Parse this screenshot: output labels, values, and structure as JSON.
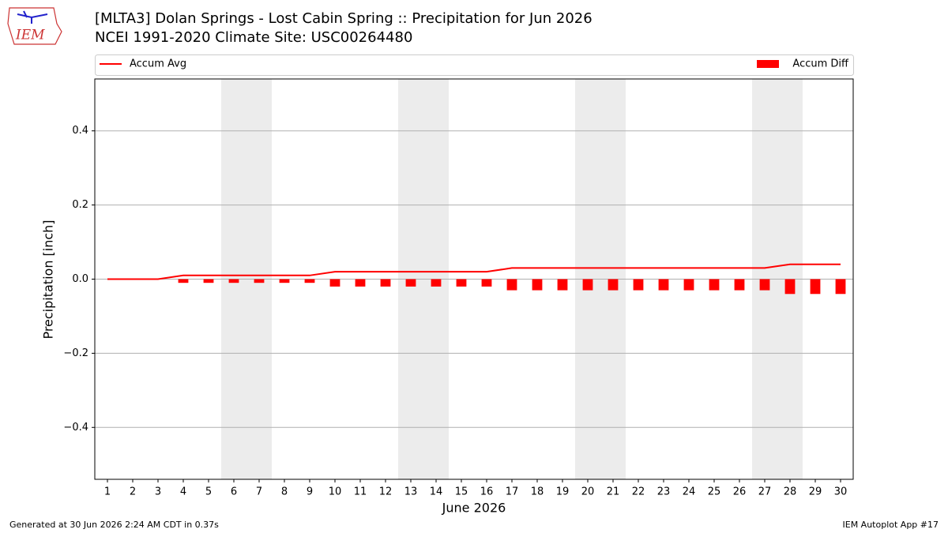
{
  "logo_text": "IEM",
  "footer": {
    "left": "Generated at 30 Jun 2026 2:24 AM CDT in 0.37s",
    "right": "IEM Autoplot App #17"
  },
  "chart_data": {
    "type": "bar-line",
    "title": "[MLTA3] Dolan Springs - Lost Cabin Spring :: Precipitation for Jun 2026",
    "subtitle": "NCEI 1991-2020 Climate Site: USC00264480",
    "x_label": "June 2026",
    "y_label": "Precipitation [inch]",
    "categories": [
      "1",
      "2",
      "3",
      "4",
      "5",
      "6",
      "7",
      "8",
      "9",
      "10",
      "11",
      "12",
      "13",
      "14",
      "15",
      "16",
      "17",
      "18",
      "19",
      "20",
      "21",
      "22",
      "23",
      "24",
      "25",
      "26",
      "27",
      "28",
      "29",
      "30"
    ],
    "shaded_categories": [
      "6",
      "7",
      "13",
      "14",
      "20",
      "21",
      "27",
      "28"
    ],
    "series": [
      {
        "name": "Accum Avg",
        "kind": "line",
        "color": "#ff0000",
        "values": [
          0,
          0,
          0,
          0.01,
          0.01,
          0.01,
          0.01,
          0.01,
          0.01,
          0.02,
          0.02,
          0.02,
          0.02,
          0.02,
          0.02,
          0.02,
          0.03,
          0.03,
          0.03,
          0.03,
          0.03,
          0.03,
          0.03,
          0.03,
          0.03,
          0.03,
          0.03,
          0.04,
          0.04,
          0.04
        ]
      },
      {
        "name": "Accum Diff",
        "kind": "bar",
        "color": "#ff0000",
        "values": [
          0,
          0,
          0,
          -0.01,
          -0.01,
          -0.01,
          -0.01,
          -0.01,
          -0.01,
          -0.02,
          -0.02,
          -0.02,
          -0.02,
          -0.02,
          -0.02,
          -0.02,
          -0.03,
          -0.03,
          -0.03,
          -0.03,
          -0.03,
          -0.03,
          -0.03,
          -0.03,
          -0.03,
          -0.03,
          -0.03,
          -0.04,
          -0.04,
          -0.04
        ]
      }
    ],
    "ylim": [
      -0.54,
      0.54
    ],
    "yticks": [
      {
        "value": -0.4,
        "label": "−0.4"
      },
      {
        "value": -0.2,
        "label": "−0.2"
      },
      {
        "value": 0,
        "label": "0.0"
      },
      0.2,
      0.4
    ],
    "grid": true
  }
}
